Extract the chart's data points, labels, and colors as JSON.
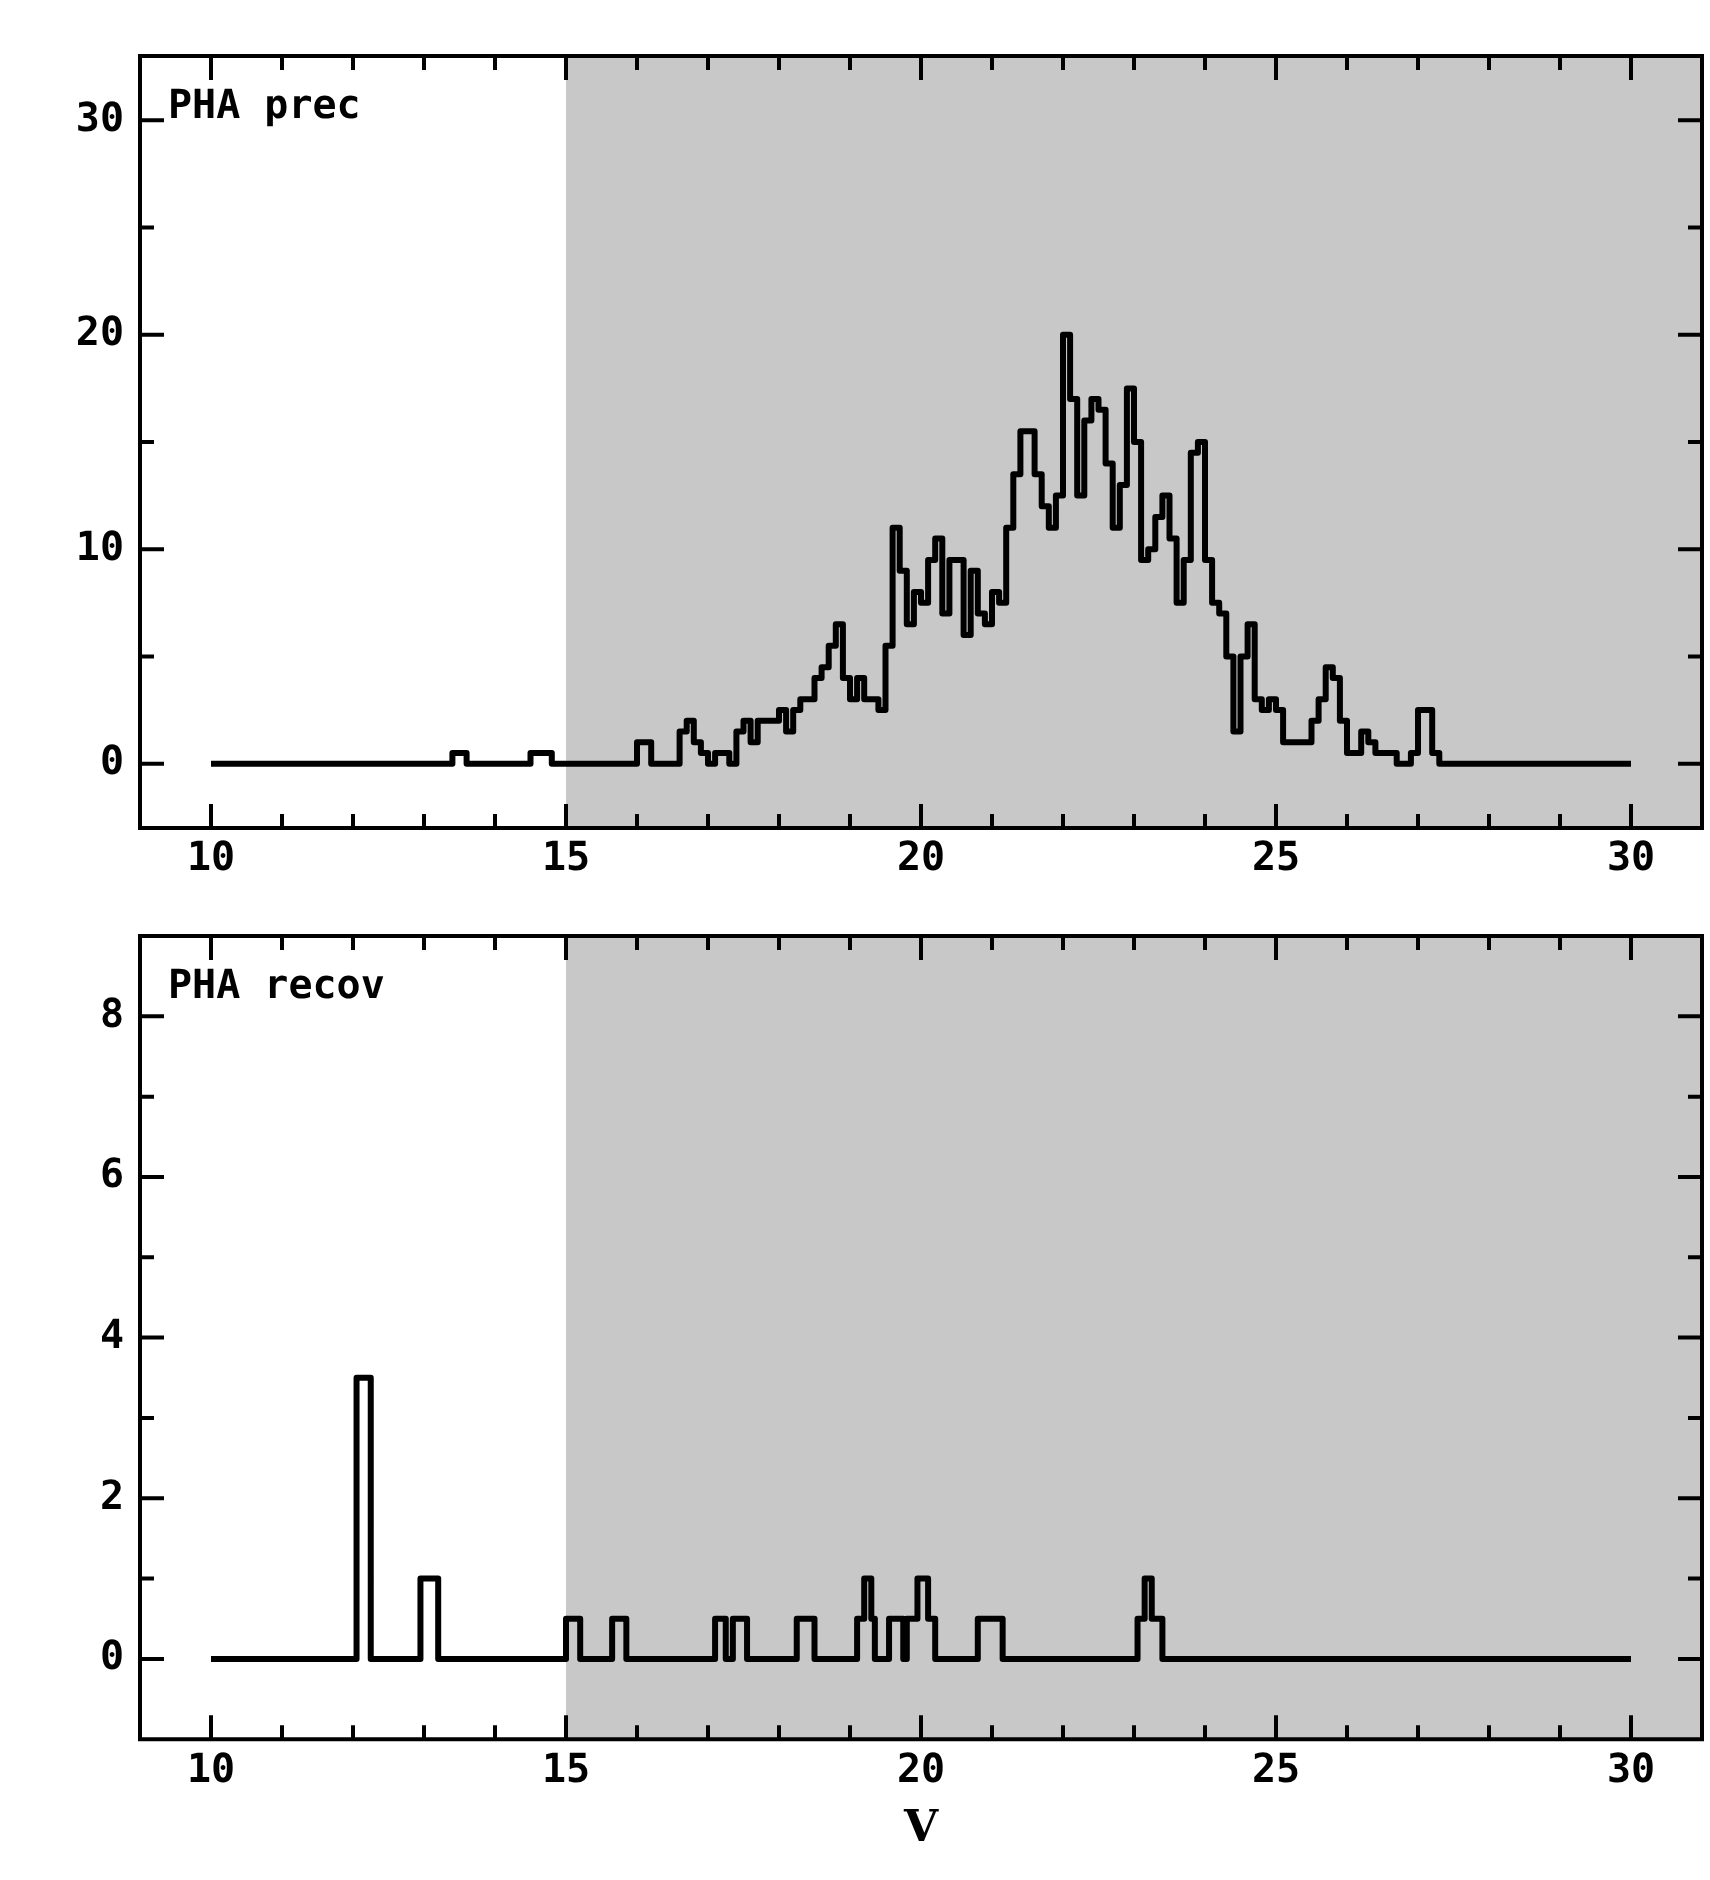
{
  "chart_data": [
    {
      "type": "histogram",
      "color": "#000000",
      "annotations": [
        "PHA prec"
      ],
      "grid": false,
      "bins": [
        10.0,
        13.4,
        13.6,
        14.5,
        14.8,
        16.0,
        16.2,
        16.6,
        16.7,
        16.8,
        16.9,
        17.0,
        17.1,
        17.3,
        17.4,
        17.5,
        17.6,
        17.7,
        18.0,
        18.1,
        18.2,
        18.3,
        18.5,
        18.6,
        18.7,
        18.8,
        18.9,
        19.0,
        19.1,
        19.2,
        19.4,
        19.5,
        19.6,
        19.7,
        19.8,
        19.9,
        20.0,
        20.1,
        20.2,
        20.3,
        20.4,
        20.6,
        20.7,
        20.8,
        20.9,
        21.0,
        21.1,
        21.2,
        21.3,
        21.4,
        21.6,
        21.7,
        21.8,
        21.9,
        22.0,
        22.1,
        22.2,
        22.3,
        22.4,
        22.5,
        22.6,
        22.7,
        22.8,
        22.9,
        23.0,
        23.1,
        23.2,
        23.3,
        23.4,
        23.5,
        23.6,
        23.7,
        23.8,
        23.9,
        24.0,
        24.1,
        24.2,
        24.3,
        24.4,
        24.5,
        24.6,
        24.7,
        24.8,
        24.9,
        25.0,
        25.1,
        25.5,
        25.6,
        25.7,
        25.8,
        25.9,
        26.0,
        26.2,
        26.3,
        26.4,
        26.7,
        26.9,
        27.0,
        27.2,
        27.3,
        30.0
      ],
      "values": [
        0,
        0.5,
        0,
        0.5,
        0,
        1,
        0,
        1.5,
        2,
        1,
        0.5,
        0,
        0.5,
        0,
        1.5,
        2,
        1,
        2,
        2.5,
        1.5,
        2.5,
        3,
        4,
        4.5,
        5.5,
        6.5,
        4,
        3,
        4,
        3,
        2.5,
        5.5,
        11,
        9,
        6.5,
        8,
        7.5,
        9.5,
        10.5,
        7,
        9.5,
        6,
        9,
        7,
        6.5,
        8,
        7.5,
        11,
        13.5,
        15.5,
        13.5,
        12,
        11,
        12.5,
        20,
        17,
        12.5,
        16,
        17,
        16.5,
        14,
        11,
        13,
        17.5,
        15,
        9.5,
        10,
        11.5,
        12.5,
        10.5,
        7.5,
        9.5,
        14.5,
        15,
        9.5,
        7.5,
        7,
        5,
        1.5,
        5,
        6.5,
        3,
        2.5,
        3,
        2.5,
        1,
        2,
        3,
        4.5,
        4,
        2,
        0.5,
        1.5,
        1,
        0.5,
        0,
        0.5,
        2.5,
        0.5,
        0
      ],
      "xlim": [
        9,
        31
      ],
      "xticks": [
        {
          "value": 9,
          "label": null
        },
        10,
        {
          "value": 11,
          "label": null
        },
        {
          "value": 12,
          "label": null
        },
        {
          "value": 13,
          "label": null
        },
        {
          "value": 14,
          "label": null
        },
        15,
        {
          "value": 16,
          "label": null
        },
        {
          "value": 17,
          "label": null
        },
        {
          "value": 18,
          "label": null
        },
        {
          "value": 19,
          "label": null
        },
        20,
        {
          "value": 21,
          "label": null
        },
        {
          "value": 22,
          "label": null
        },
        {
          "value": 23,
          "label": null
        },
        {
          "value": 24,
          "label": null
        },
        25,
        {
          "value": 26,
          "label": null
        },
        {
          "value": 27,
          "label": null
        },
        {
          "value": 28,
          "label": null
        },
        {
          "value": 29,
          "label": null
        },
        30
      ],
      "ylim": [
        -3,
        33
      ],
      "yticks": [
        0,
        {
          "value": 5,
          "label": null
        },
        10,
        {
          "value": 15,
          "label": null
        },
        20,
        {
          "value": 25,
          "label": null
        },
        30
      ],
      "bands": [
        {
          "axis": "x",
          "from": 15,
          "to": 31,
          "color": "#c8c8c8"
        }
      ]
    },
    {
      "type": "histogram",
      "color": "#000000",
      "annotations": [
        "PHA recov"
      ],
      "grid": false,
      "xlabel": "V",
      "bins": [
        10.0,
        12.05,
        12.25,
        12.95,
        13.2,
        15.0,
        15.2,
        15.65,
        15.85,
        17.1,
        17.25,
        17.35,
        17.55,
        18.25,
        18.5,
        19.1,
        19.2,
        19.3,
        19.35,
        19.55,
        19.75,
        19.8,
        19.95,
        20.1,
        20.2,
        20.8,
        21.15,
        23.05,
        23.15,
        23.25,
        23.4,
        30.0
      ],
      "values": [
        0,
        3.5,
        0,
        1,
        0,
        0.5,
        0,
        0.5,
        0,
        0.5,
        0,
        0.5,
        0,
        0.5,
        0,
        0.5,
        1,
        0.5,
        0,
        0.5,
        0,
        0.5,
        1,
        0.5,
        0,
        0.5,
        0,
        0.5,
        1,
        0.5,
        0
      ],
      "xlim": [
        9,
        31
      ],
      "xticks": [
        {
          "value": 9,
          "label": null
        },
        10,
        {
          "value": 11,
          "label": null
        },
        {
          "value": 12,
          "label": null
        },
        {
          "value": 13,
          "label": null
        },
        {
          "value": 14,
          "label": null
        },
        15,
        {
          "value": 16,
          "label": null
        },
        {
          "value": 17,
          "label": null
        },
        {
          "value": 18,
          "label": null
        },
        {
          "value": 19,
          "label": null
        },
        20,
        {
          "value": 21,
          "label": null
        },
        {
          "value": 22,
          "label": null
        },
        {
          "value": 23,
          "label": null
        },
        {
          "value": 24,
          "label": null
        },
        25,
        {
          "value": 26,
          "label": null
        },
        {
          "value": 27,
          "label": null
        },
        {
          "value": 28,
          "label": null
        },
        {
          "value": 29,
          "label": null
        },
        30
      ],
      "ylim": [
        -1,
        9
      ],
      "yticks": [
        0,
        {
          "value": 1,
          "label": null
        },
        2,
        {
          "value": 3,
          "label": null
        },
        4,
        {
          "value": 5,
          "label": null
        },
        6,
        {
          "value": 7,
          "label": null
        },
        8
      ],
      "bands": [
        {
          "axis": "x",
          "from": 15,
          "to": 31,
          "color": "#c8c8c8"
        }
      ]
    }
  ]
}
